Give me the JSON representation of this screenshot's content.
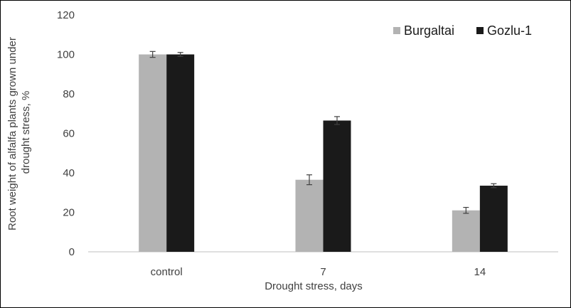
{
  "chart_data": {
    "type": "bar",
    "title": "",
    "xlabel": "Drought stress, days",
    "ylabel_lines": [
      "Root weight of alfalfa plants grown under",
      "drought stress, %"
    ],
    "categories": [
      "control",
      "7",
      "14"
    ],
    "ylim": [
      0,
      120
    ],
    "yticks": [
      0,
      20,
      40,
      60,
      80,
      100,
      120
    ],
    "ytick_labels": [
      "0",
      "20",
      "40",
      "60",
      "80",
      "100",
      "120"
    ],
    "grid": false,
    "legend_position": "top-right",
    "series": [
      {
        "name": "Burgaltai",
        "color": "#b3b3b3",
        "values": [
          100,
          36.5,
          21
        ],
        "errors": [
          1.5,
          2.5,
          1.5
        ]
      },
      {
        "name": "Gozlu-1",
        "color": "#1a1a1a",
        "values": [
          100,
          66.5,
          33.5
        ],
        "errors": [
          1.0,
          2.0,
          1.0
        ]
      }
    ]
  }
}
